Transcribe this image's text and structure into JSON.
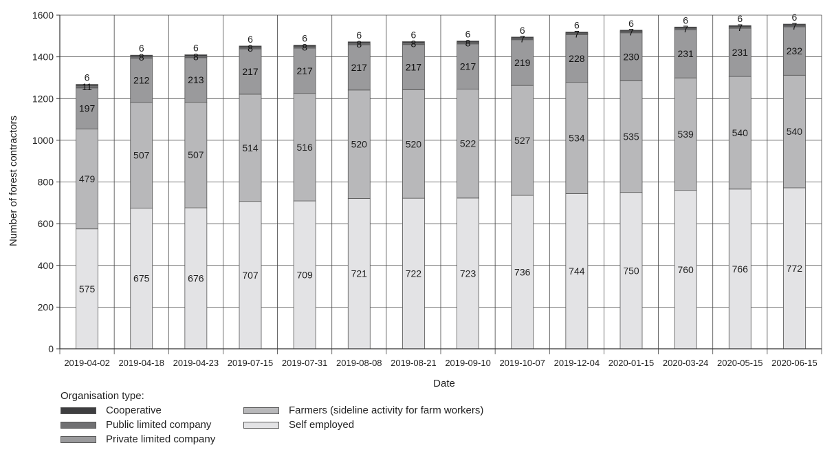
{
  "chart_data": {
    "type": "bar",
    "stacked": true,
    "xlabel": "Date",
    "ylabel": "Number of forest contractors",
    "ylim": [
      0,
      1600
    ],
    "yticks": [
      0,
      200,
      400,
      600,
      800,
      1000,
      1200,
      1400,
      1600
    ],
    "grid": true,
    "categories": [
      "2019-04-02",
      "2019-04-18",
      "2019-04-23",
      "2019-07-15",
      "2019-07-31",
      "2019-08-08",
      "2019-08-21",
      "2019-09-10",
      "2019-10-07",
      "2019-12-04",
      "2020-01-15",
      "2020-03-24",
      "2020-05-15",
      "2020-06-15"
    ],
    "series": [
      {
        "name": "Self employed",
        "color": "#e3e3e5",
        "label_color": "#222222",
        "values": [
          575,
          675,
          676,
          707,
          709,
          721,
          722,
          723,
          736,
          744,
          750,
          760,
          766,
          772
        ]
      },
      {
        "name": "Farmers (sideline activity for farm workers)",
        "color": "#b8b8ba",
        "label_color": "#222222",
        "values": [
          479,
          507,
          507,
          514,
          516,
          520,
          520,
          522,
          527,
          534,
          535,
          539,
          540,
          540
        ]
      },
      {
        "name": "Private limited company",
        "color": "#9a9a9c",
        "label_color": "#111111",
        "values": [
          197,
          212,
          213,
          217,
          217,
          217,
          217,
          217,
          219,
          228,
          230,
          231,
          231,
          232
        ]
      },
      {
        "name": "Public limited company",
        "color": "#707072",
        "label_color": "#111111",
        "values": [
          11,
          8,
          8,
          8,
          8,
          8,
          8,
          8,
          7,
          7,
          7,
          7,
          7,
          7
        ]
      },
      {
        "name": "Cooperative",
        "color": "#3e3e40",
        "label_color": "#222222",
        "values": [
          6,
          6,
          6,
          6,
          6,
          6,
          6,
          6,
          6,
          6,
          6,
          6,
          6,
          6
        ]
      }
    ]
  },
  "legend": {
    "title": "Organisation type:",
    "items": [
      {
        "label": "Cooperative",
        "color": "#3e3e40"
      },
      {
        "label": "Public limited company",
        "color": "#707072"
      },
      {
        "label": "Private limited company",
        "color": "#9a9a9c"
      },
      {
        "label": "Farmers (sideline activity for farm workers)",
        "color": "#b8b8ba"
      },
      {
        "label": "Self employed",
        "color": "#e3e3e5"
      }
    ]
  }
}
